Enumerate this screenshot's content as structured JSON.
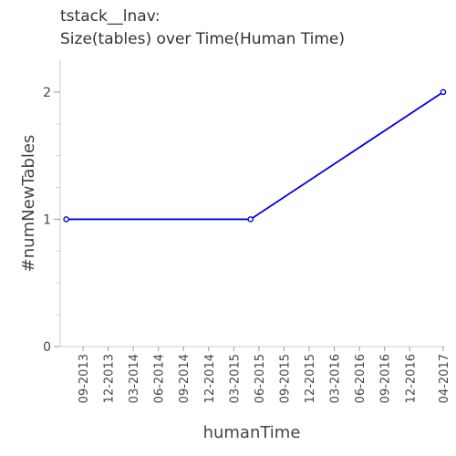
{
  "chart_data": {
    "type": "line",
    "title_lines": [
      "tstack__lnav:",
      "Size(tables) over Time(Human Time)"
    ],
    "xlabel": "humanTime",
    "ylabel": "#numNewTables",
    "x_ticks": [
      "09-2013",
      "12-2013",
      "03-2014",
      "06-2014",
      "09-2014",
      "12-2014",
      "03-2015",
      "06-2015",
      "09-2015",
      "12-2015",
      "03-2016",
      "06-2016",
      "09-2016",
      "12-2016",
      "04-2017"
    ],
    "y_ticks": [
      "0",
      "1",
      "2"
    ],
    "ylim": [
      0,
      2.25
    ],
    "series": [
      {
        "color": "#0000dd",
        "points": [
          {
            "x": "2013-07",
            "y": 1
          },
          {
            "x": "2015-05",
            "y": 1
          },
          {
            "x": "2017-04",
            "y": 2
          }
        ]
      }
    ],
    "grid": false
  }
}
